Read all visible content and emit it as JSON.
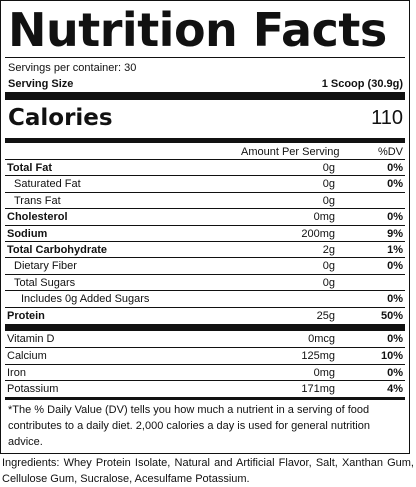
{
  "title": "Nutrition Facts",
  "servings_per_container": "Servings per container: 30",
  "serving_size_label": "Serving Size",
  "serving_size_value": "1 Scoop (30.9g)",
  "calories_label": "Calories",
  "calories_value": "110",
  "column_headers": {
    "amount": "Amount Per Serving",
    "dv": "%DV"
  },
  "nutrients": [
    {
      "name": "Total Fat",
      "amount": "0g",
      "dv": "0%",
      "bold": true,
      "indent": 0
    },
    {
      "name": "Saturated Fat",
      "amount": "0g",
      "dv": "0%",
      "bold": false,
      "indent": 1
    },
    {
      "name": "Trans Fat",
      "amount": "0g",
      "dv": "",
      "bold": false,
      "indent": 1
    },
    {
      "name": "Cholesterol",
      "amount": "0mg",
      "dv": "0%",
      "bold": true,
      "indent": 0
    },
    {
      "name": "Sodium",
      "amount": "200mg",
      "dv": "9%",
      "bold": true,
      "indent": 0
    },
    {
      "name": "Total Carbohydrate",
      "amount": "2g",
      "dv": "1%",
      "bold": true,
      "indent": 0
    },
    {
      "name": "Dietary Fiber",
      "amount": "0g",
      "dv": "0%",
      "bold": false,
      "indent": 1
    },
    {
      "name": "Total Sugars",
      "amount": "0g",
      "dv": "",
      "bold": false,
      "indent": 1
    },
    {
      "name": "Includes 0g Added Sugars",
      "amount": "",
      "dv": "0%",
      "bold": false,
      "indent": 2
    },
    {
      "name": "Protein",
      "amount": "25g",
      "dv": "50%",
      "bold": true,
      "indent": 0
    }
  ],
  "vitamins": [
    {
      "name": "Vitamin D",
      "amount": "0mcg",
      "dv": "0%"
    },
    {
      "name": "Calcium",
      "amount": "125mg",
      "dv": "10%"
    },
    {
      "name": "Iron",
      "amount": "0mg",
      "dv": "0%"
    },
    {
      "name": "Potassium",
      "amount": "171mg",
      "dv": "4%"
    }
  ],
  "footnote": "*The % Daily Value (DV) tells you how much a nutrient in a serving of food contributes to a daily diet. 2,000 calories a day is used for general nutrition advice.",
  "ingredients": "Ingredients: Whey Protein Isolate, Natural and Artificial Flavor, Salt, Xanthan Gum, Cellulose Gum, Sucralose, Acesulfame Potassium."
}
